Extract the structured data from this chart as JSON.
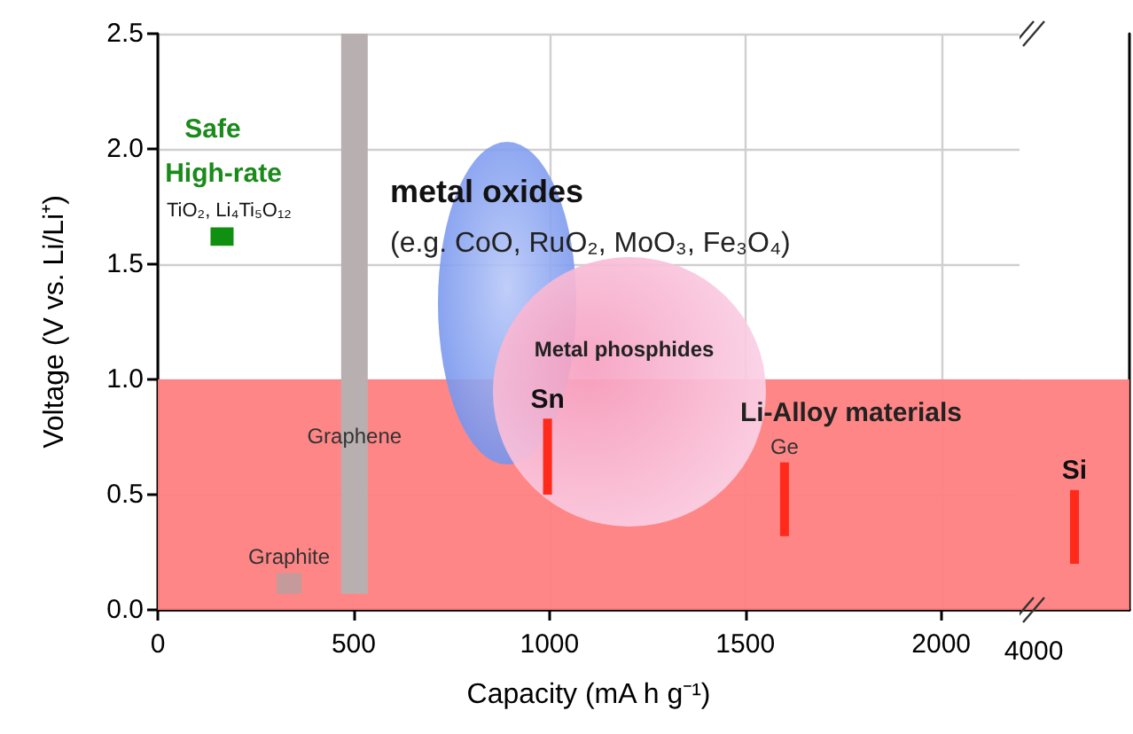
{
  "chart_data": [
    {
      "type": "bar",
      "xlabel": "Capacity (mA h g⁻¹)",
      "ylabel": "Voltage (V vs. Li/Li⁺)",
      "xlim": [
        0,
        2200
      ],
      "xticks": [
        0,
        500,
        1000,
        1500,
        2000
      ],
      "ylim": [
        0,
        2.5
      ],
      "yticks": [
        {
          "value": 0,
          "label": "0.0"
        },
        {
          "value": 0.5,
          "label": "0.5"
        },
        {
          "value": 1,
          "label": "1.0"
        },
        {
          "value": 1.5,
          "label": "1.5"
        },
        {
          "value": 2,
          "label": "2.0"
        },
        {
          "value": 2.5,
          "label": "2.5"
        }
      ],
      "grid": true,
      "bands": [
        {
          "axis": "y",
          "from": 0,
          "to": 1,
          "color": "#ff8080"
        }
      ],
      "series": [
        {
          "name": "TiO₂, Li₄Ti₅O₁₂",
          "color": "#109010",
          "x": [
            164
          ],
          "base": [
            1.58
          ],
          "values": [
            0.08
          ]
        },
        {
          "name": "Graphite",
          "color": "#c49a9a",
          "x": [
            335
          ],
          "base": [
            0.07
          ],
          "values": [
            0.09
          ]
        },
        {
          "name": "Graphene",
          "color": "#b8b0b0",
          "x": [
            502
          ],
          "base": [
            0.07
          ],
          "values": [
            2.43
          ]
        },
        {
          "name": "Sn",
          "color": "#ff2a1a",
          "x": [
            995
          ],
          "base": [
            0.5
          ],
          "values": [
            0.33
          ]
        },
        {
          "name": "Ge",
          "color": "#ff2a1a",
          "x": [
            1600
          ],
          "base": [
            0.32
          ],
          "values": [
            0.32
          ]
        }
      ],
      "annotations": [
        "Safe",
        "High-rate",
        "metal oxides",
        "(e.g. CoO, RuO₂, MoO₃, Fe₃O₄)",
        "Metal phosphides",
        "Li-Alloy materials"
      ]
    },
    {
      "type": "bar",
      "categories": [
        null
      ],
      "ylim": [
        0,
        2.5
      ],
      "grid": "y",
      "bands": [
        {
          "axis": "y",
          "from": 0,
          "to": 1,
          "color": "#ff8080"
        }
      ],
      "series": [
        {
          "name": "Si",
          "color": "#ff2a1a",
          "base": [
            0.2
          ],
          "values": [
            0.32
          ]
        }
      ],
      "annotations": [
        "4000"
      ]
    }
  ]
}
